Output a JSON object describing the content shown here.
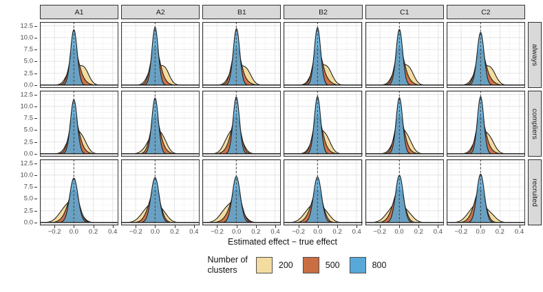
{
  "colors": {
    "strip_bg": "#D9D9D9",
    "strip_border": "#2e2e2e",
    "panel_border": "#2e2e2e",
    "grid_major": "#E4E4E4",
    "grid_minor": "#F2F2F2",
    "density_outline": "#1f1f1f",
    "vline": "#3a3a3a",
    "axis_text": "#4a4a4a"
  },
  "chart_data": {
    "type": "density",
    "title": "",
    "xlabel": "Estimated effect − true effect",
    "ylabel": "",
    "legend_title": [
      "Number of",
      "clusters"
    ],
    "legend_position": "bottom",
    "grid": "on",
    "col_facets": [
      "A1",
      "A2",
      "B1",
      "B2",
      "C1",
      "C2"
    ],
    "row_facets": [
      "always",
      "compliers",
      "recruited"
    ],
    "xlim": [
      -0.35,
      0.46
    ],
    "ylim": [
      -0.6,
      13.3
    ],
    "x_ticks": {
      "values": [
        -0.2,
        0.0,
        0.2,
        0.4
      ],
      "labels": [
        "−0.2",
        "0.0",
        "0.2",
        "0.4"
      ]
    },
    "y_ticks": {
      "values": [
        0.0,
        2.5,
        5.0,
        7.5,
        10.0,
        12.5
      ],
      "labels": [
        "0.0",
        "2.5",
        "5.0",
        "7.5",
        "10.0",
        "12.5"
      ]
    },
    "x_minor": [
      -0.3,
      -0.1,
      0.1,
      0.3
    ],
    "y_minor": [
      1.25,
      3.75,
      6.25,
      8.75,
      11.25
    ],
    "vline_x": 0,
    "series": [
      {
        "name": "200",
        "color": "#F3DCA0",
        "fill_opacity": 1.0
      },
      {
        "name": "500",
        "color": "#C96D43",
        "fill_opacity": 0.95
      },
      {
        "name": "800",
        "color": "#58A9D8",
        "fill_opacity": 0.85
      }
    ],
    "density_model": "mixture of gaussians; each component is [center, sd, weight]",
    "panels": {
      "always": {
        "A1": {
          "200": [
            [
              -0.01,
              0.056,
              0.58
            ],
            [
              0.105,
              0.05,
              0.42
            ]
          ],
          "500": [
            [
              0.0,
              0.046,
              0.88
            ],
            [
              0.085,
              0.048,
              0.12
            ]
          ],
          "800": [
            [
              0.0,
              0.034,
              1.0
            ]
          ]
        },
        "A2": {
          "200": [
            [
              -0.012,
              0.054,
              0.6
            ],
            [
              0.1,
              0.048,
              0.4
            ]
          ],
          "500": [
            [
              0.0,
              0.0455,
              0.9
            ],
            [
              0.08,
              0.046,
              0.1
            ]
          ],
          "800": [
            [
              0.0,
              0.0326,
              1.0
            ]
          ]
        },
        "B1": {
          "200": [
            [
              -0.008,
              0.056,
              0.62
            ],
            [
              0.105,
              0.05,
              0.38
            ]
          ],
          "500": [
            [
              0.0,
              0.046,
              0.9
            ],
            [
              0.09,
              0.05,
              0.1
            ]
          ],
          "800": [
            [
              0.002,
              0.0334,
              1.0
            ]
          ]
        },
        "B2": {
          "200": [
            [
              -0.01,
              0.054,
              0.55
            ],
            [
              0.1,
              0.052,
              0.45
            ]
          ],
          "500": [
            [
              0.0,
              0.0455,
              0.87
            ],
            [
              0.085,
              0.05,
              0.13
            ]
          ],
          "800": [
            [
              0.0,
              0.0328,
              1.0
            ]
          ]
        },
        "C1": {
          "200": [
            [
              -0.008,
              0.056,
              0.6
            ],
            [
              0.1,
              0.05,
              0.4
            ]
          ],
          "500": [
            [
              0.0,
              0.046,
              0.89
            ],
            [
              0.085,
              0.048,
              0.11
            ]
          ],
          "800": [
            [
              0.0,
              0.0338,
              1.0
            ]
          ]
        },
        "C2": {
          "200": [
            [
              -0.01,
              0.057,
              0.58
            ],
            [
              0.105,
              0.052,
              0.42
            ]
          ],
          "500": [
            [
              0.0,
              0.047,
              0.88
            ],
            [
              0.09,
              0.05,
              0.12
            ]
          ],
          "800": [
            [
              0.0,
              0.0358,
              1.0
            ]
          ]
        }
      },
      "compliers": {
        "A1": {
          "200": [
            [
              -0.005,
              0.058,
              0.68
            ],
            [
              0.09,
              0.05,
              0.32
            ]
          ],
          "500": [
            [
              0.0,
              0.047,
              0.9
            ],
            [
              0.08,
              0.048,
              0.1
            ]
          ],
          "800": [
            [
              0.0,
              0.0348,
              1.0
            ]
          ]
        },
        "A2": {
          "200": [
            [
              0.0,
              0.056,
              0.62
            ],
            [
              0.085,
              0.048,
              0.28
            ],
            [
              -0.09,
              0.05,
              0.1
            ]
          ],
          "500": [
            [
              0.0,
              0.0465,
              0.9
            ],
            [
              0.08,
              0.047,
              0.1
            ]
          ],
          "800": [
            [
              0.0,
              0.0338,
              1.0
            ]
          ]
        },
        "B1": {
          "200": [
            [
              0.005,
              0.057,
              0.66
            ],
            [
              -0.085,
              0.052,
              0.34
            ]
          ],
          "500": [
            [
              0.0,
              0.0465,
              0.88
            ],
            [
              -0.075,
              0.05,
              0.12
            ]
          ],
          "800": [
            [
              0.0,
              0.0332,
              1.0
            ]
          ]
        },
        "B2": {
          "200": [
            [
              -0.005,
              0.056,
              0.62
            ],
            [
              0.09,
              0.05,
              0.38
            ]
          ],
          "500": [
            [
              0.0,
              0.046,
              0.9
            ],
            [
              0.08,
              0.048,
              0.1
            ]
          ],
          "800": [
            [
              0.0,
              0.033,
              1.0
            ]
          ]
        },
        "C1": {
          "200": [
            [
              0.0,
              0.06,
              0.72
            ],
            [
              0.09,
              0.05,
              0.28
            ]
          ],
          "500": [
            [
              0.0,
              0.047,
              0.92
            ],
            [
              0.08,
              0.05,
              0.08
            ]
          ],
          "800": [
            [
              0.0,
              0.0336,
              1.0
            ]
          ]
        },
        "C2": {
          "200": [
            [
              -0.005,
              0.058,
              0.64
            ],
            [
              0.095,
              0.052,
              0.36
            ]
          ],
          "500": [
            [
              0.0,
              0.0465,
              0.9
            ],
            [
              0.085,
              0.048,
              0.1
            ]
          ],
          "800": [
            [
              0.0,
              0.033,
              1.0
            ]
          ]
        }
      },
      "recruited": {
        "A1": {
          "200": [
            [
              0.005,
              0.062,
              0.62
            ],
            [
              -0.1,
              0.065,
              0.38
            ]
          ],
          "500": [
            [
              0.004,
              0.052,
              0.84
            ],
            [
              -0.075,
              0.055,
              0.16
            ]
          ],
          "800": [
            [
              0.0,
              0.0425,
              1.0
            ]
          ]
        },
        "A2": {
          "200": [
            [
              0.0,
              0.062,
              0.55
            ],
            [
              -0.1,
              0.062,
              0.3
            ],
            [
              0.095,
              0.05,
              0.15
            ]
          ],
          "500": [
            [
              0.003,
              0.052,
              0.85
            ],
            [
              -0.07,
              0.052,
              0.15
            ]
          ],
          "800": [
            [
              0.0,
              0.042,
              1.0
            ]
          ]
        },
        "B1": {
          "200": [
            [
              0.005,
              0.063,
              0.6
            ],
            [
              -0.105,
              0.065,
              0.4
            ]
          ],
          "500": [
            [
              0.004,
              0.051,
              0.84
            ],
            [
              -0.08,
              0.055,
              0.16
            ]
          ],
          "800": [
            [
              0.0,
              0.041,
              1.0
            ]
          ]
        },
        "B2": {
          "200": [
            [
              0.0,
              0.062,
              0.56
            ],
            [
              -0.1,
              0.062,
              0.29
            ],
            [
              0.1,
              0.05,
              0.15
            ]
          ],
          "500": [
            [
              0.003,
              0.052,
              0.85
            ],
            [
              -0.075,
              0.052,
              0.15
            ]
          ],
          "800": [
            [
              0.0,
              0.0415,
              1.0
            ]
          ]
        },
        "C1": {
          "200": [
            [
              -0.005,
              0.06,
              0.55
            ],
            [
              -0.1,
              0.062,
              0.27
            ],
            [
              0.1,
              0.053,
              0.18
            ]
          ],
          "500": [
            [
              0.0,
              0.051,
              0.84
            ],
            [
              -0.07,
              0.052,
              0.16
            ]
          ],
          "800": [
            [
              0.0,
              0.04,
              1.0
            ]
          ]
        },
        "C2": {
          "200": [
            [
              -0.005,
              0.06,
              0.53
            ],
            [
              -0.1,
              0.06,
              0.27
            ],
            [
              0.105,
              0.055,
              0.2
            ]
          ],
          "500": [
            [
              0.0,
              0.05,
              0.83
            ],
            [
              -0.07,
              0.052,
              0.17
            ]
          ],
          "800": [
            [
              0.0,
              0.039,
              1.0
            ]
          ]
        }
      }
    }
  }
}
